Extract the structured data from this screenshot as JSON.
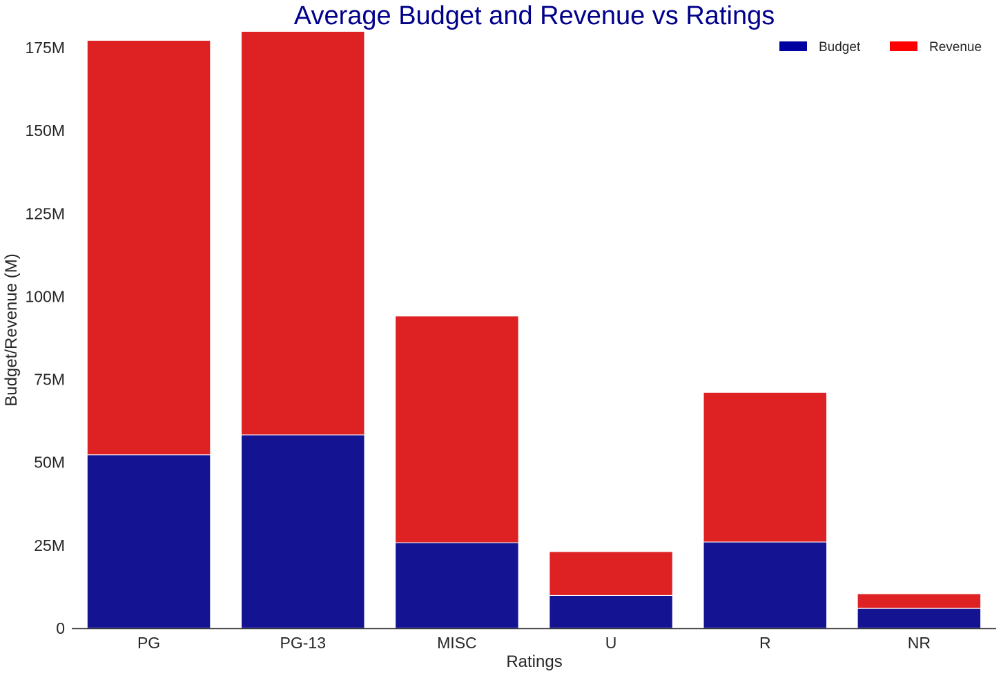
{
  "chart_data": {
    "type": "bar",
    "stacked": true,
    "title": "Average Budget and Revenue vs Ratings",
    "xlabel": "Ratings",
    "ylabel": "Budget/Revenue (M)",
    "categories": [
      "PG",
      "PG-13",
      "MISC",
      "U",
      "R",
      "NR"
    ],
    "series": [
      {
        "name": "Budget",
        "values": [
          52.3,
          58.3,
          25.8,
          9.9,
          26.0,
          6.0
        ],
        "color": "#141492",
        "legend_color": "#0000a0"
      },
      {
        "name": "Revenue",
        "values": [
          124.9,
          121.6,
          68.3,
          13.2,
          45.1,
          4.4
        ],
        "color": "#de2123",
        "legend_color": "#ff0000"
      }
    ],
    "yticks": [
      0,
      25,
      50,
      75,
      100,
      125,
      150,
      175
    ],
    "ytick_labels": [
      "0",
      "25M",
      "50M",
      "75M",
      "100M",
      "125M",
      "150M",
      "175M"
    ],
    "ylim": [
      0,
      180
    ],
    "grid": false,
    "legend_position": "top-right",
    "legend_columns": 2,
    "title_color": "#00008b"
  }
}
